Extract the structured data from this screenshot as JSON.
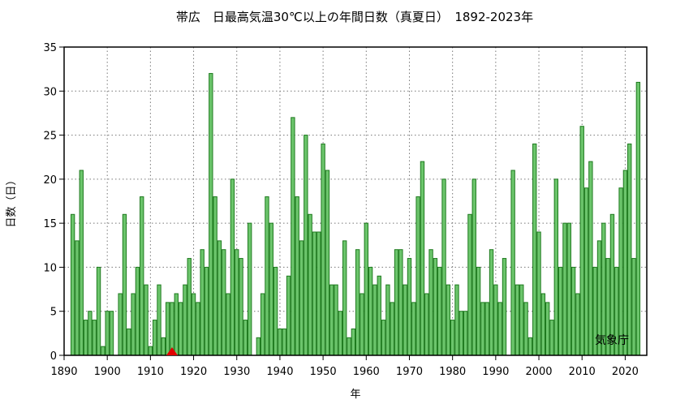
{
  "chart_data": {
    "type": "bar",
    "title": "帯広　日最高気温30℃以上の年間日数（真夏日）　1892-2023年",
    "xlabel": "年",
    "ylabel": "日数（日）",
    "credit": "気象庁",
    "xlim": [
      1890,
      2025
    ],
    "ylim": [
      0,
      35
    ],
    "xticks": [
      1890,
      1900,
      1910,
      1920,
      1930,
      1940,
      1950,
      1960,
      1970,
      1980,
      1990,
      2000,
      2010,
      2020
    ],
    "yticks": [
      0,
      5,
      10,
      15,
      20,
      25,
      30,
      35
    ],
    "grid": true,
    "bar_color": "#6cc56c",
    "bar_edge_color": "#1e7a1e",
    "marker_color": "#e00000",
    "marker": {
      "year": 1915,
      "value": 0
    },
    "x": [
      1892,
      1893,
      1894,
      1895,
      1896,
      1897,
      1898,
      1899,
      1900,
      1901,
      1902,
      1903,
      1904,
      1905,
      1906,
      1907,
      1908,
      1909,
      1910,
      1911,
      1912,
      1913,
      1914,
      1915,
      1916,
      1917,
      1918,
      1919,
      1920,
      1921,
      1922,
      1923,
      1924,
      1925,
      1926,
      1927,
      1928,
      1929,
      1930,
      1931,
      1932,
      1933,
      1934,
      1935,
      1936,
      1937,
      1938,
      1939,
      1940,
      1941,
      1942,
      1943,
      1944,
      1945,
      1946,
      1947,
      1948,
      1949,
      1950,
      1951,
      1952,
      1953,
      1954,
      1955,
      1956,
      1957,
      1958,
      1959,
      1960,
      1961,
      1962,
      1963,
      1964,
      1965,
      1966,
      1967,
      1968,
      1969,
      1970,
      1971,
      1972,
      1973,
      1974,
      1975,
      1976,
      1977,
      1978,
      1979,
      1980,
      1981,
      1982,
      1983,
      1984,
      1985,
      1986,
      1987,
      1988,
      1989,
      1990,
      1991,
      1992,
      1993,
      1994,
      1995,
      1996,
      1997,
      1998,
      1999,
      2000,
      2001,
      2002,
      2003,
      2004,
      2005,
      2006,
      2007,
      2008,
      2009,
      2010,
      2011,
      2012,
      2013,
      2014,
      2015,
      2016,
      2017,
      2018,
      2019,
      2020,
      2021,
      2022,
      2023
    ],
    "values": [
      16,
      13,
      21,
      4,
      5,
      4,
      10,
      1,
      5,
      5,
      0,
      7,
      16,
      3,
      7,
      10,
      18,
      8,
      1,
      4,
      8,
      2,
      6,
      6,
      7,
      6,
      8,
      11,
      7,
      6,
      12,
      10,
      32,
      18,
      13,
      12,
      7,
      20,
      12,
      11,
      4,
      15,
      0,
      2,
      7,
      18,
      15,
      10,
      3,
      3,
      9,
      27,
      18,
      13,
      25,
      16,
      14,
      14,
      24,
      21,
      8,
      8,
      5,
      13,
      2,
      3,
      12,
      7,
      15,
      10,
      8,
      9,
      4,
      8,
      6,
      12,
      12,
      8,
      11,
      6,
      18,
      22,
      7,
      12,
      11,
      10,
      20,
      8,
      4,
      8,
      5,
      5,
      16,
      20,
      10,
      6,
      6,
      12,
      8,
      6,
      11,
      0,
      21,
      8,
      8,
      6,
      2,
      24,
      14,
      7,
      6,
      4,
      20,
      10,
      15,
      15,
      10,
      7,
      26,
      19,
      22,
      10,
      13,
      15,
      11,
      16,
      10,
      19,
      21,
      24,
      11,
      31
    ]
  }
}
